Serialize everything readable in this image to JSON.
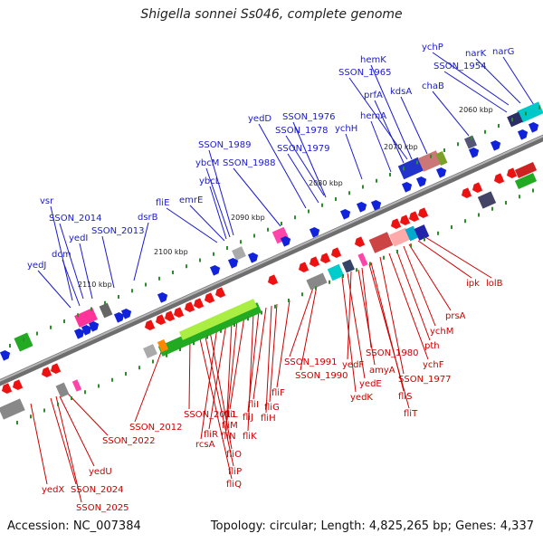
{
  "title": "Shigella sonnei Ss046, complete genome",
  "footer": {
    "accession": "Accession: NC_007384",
    "topology": "Topology: circular; Length: 4,825,265 bp; Genes: 4,337"
  },
  "colors": {
    "forward_labels": "#1a1acc",
    "reverse_labels": "#cc0000",
    "backbone": "#8a8a8a",
    "ticks": "#2e8b2e"
  },
  "ticks": [
    "2060 kbp",
    "2070 kbp",
    "2080 kbp",
    "2090 kbp",
    "2100 kbp",
    "2110 kbp"
  ],
  "forward_genes": [
    "ychP",
    "narK",
    "narG",
    "SSON_1954",
    "hemK",
    "SSON_1965",
    "chaB",
    "prfA",
    "kdsA",
    "hemA",
    "SSON_1976",
    "SSON_1978",
    "ychH",
    "SSON_1979",
    "yedD",
    "SSON_1989",
    "ybcM",
    "SSON_1988",
    "ybcL",
    "fliE",
    "emrE",
    "vsr",
    "SSON_2014",
    "dsrB",
    "yedI",
    "SSON_2013",
    "dcm",
    "yedJ"
  ],
  "reverse_genes": [
    "lolB",
    "ipk",
    "prsA",
    "ychM",
    "pth",
    "ychF",
    "SSON_1977",
    "SSON_1980",
    "amyA",
    "yedF",
    "yedE",
    "fliS",
    "fliT",
    "yedK",
    "SSON_1991",
    "SSON_1990",
    "fliF",
    "fliG",
    "fliH",
    "fliI",
    "fliJ",
    "fliK",
    "fliL",
    "fliM",
    "fliN",
    "SSON_2011",
    "fliR",
    "rcsA",
    "fliO",
    "fliP",
    "fliQ",
    "SSON_2012",
    "SSON_2022",
    "yedU",
    "SSON_2024",
    "yedX",
    "SSON_2025"
  ]
}
